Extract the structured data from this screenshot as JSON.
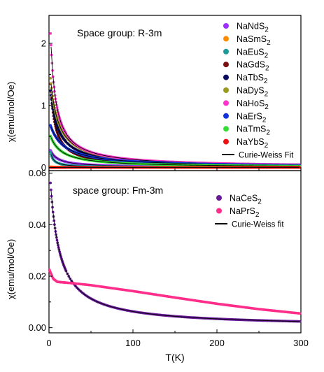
{
  "figure": {
    "ylabel": "χ(emu/mol/Oe)",
    "xlabel": "T(K)",
    "xticks": [
      "0",
      "100",
      "200",
      "300"
    ]
  },
  "chart_data": [
    {
      "type": "scatter",
      "annotation": "Space group: R-3m",
      "xlabel": "T(K)",
      "ylabel": "χ(emu/mol/Oe)",
      "xlim": [
        0,
        300
      ],
      "ylim": [
        -0.05,
        2.45
      ],
      "yticks": [
        "0",
        "1",
        "2"
      ],
      "legend_position": "top-right",
      "fit_label": "Curie-Weiss Fit",
      "series": [
        {
          "name": "NaNdS",
          "sub": "2",
          "color": "#9b30ff",
          "C": 2.5,
          "theta": 7.3,
          "chi0": 0.001
        },
        {
          "name": "NaSmS",
          "sub": "2",
          "color": "#ff8c00",
          "C": 0.03,
          "theta": 2.0,
          "chi0": 0.004
        },
        {
          "name": "NaEuS",
          "sub": "2",
          "color": "#1e9a9a",
          "C": 0.9,
          "theta": 1.8,
          "chi0": 0.0
        },
        {
          "name": "NaGdS",
          "sub": "2",
          "color": "#7a1010",
          "C": 7.8,
          "theta": 4.0,
          "chi0": 0.0
        },
        {
          "name": "NaTbS",
          "sub": "2",
          "color": "#0a0a60",
          "C": 11.5,
          "theta": 7.5,
          "chi0": 0.0
        },
        {
          "name": "NaDyS",
          "sub": "2",
          "color": "#9a9a20",
          "C": 13.8,
          "theta": 7.8,
          "chi0": 0.0
        },
        {
          "name": "NaHoS",
          "sub": "2",
          "color": "#ff33cc",
          "C": 13.6,
          "theta": 4.5,
          "chi0": 0.0
        },
        {
          "name": "NaErS",
          "sub": "2",
          "color": "#1133dd",
          "C": 11.4,
          "theta": 15.0,
          "chi0": 0.0
        },
        {
          "name": "NaTmS",
          "sub": "2",
          "color": "#33dd33",
          "C": 7.0,
          "theta": 12.0,
          "chi0": 0.0
        },
        {
          "name": "NaYbS",
          "sub": "2",
          "color": "#ee1111",
          "C": 0.005,
          "theta": 2.0,
          "chi0": 0.0
        }
      ]
    },
    {
      "type": "scatter",
      "annotation": "space group: Fm-3m",
      "xlabel": "T(K)",
      "ylabel": "χ(emu/mol/Oe)",
      "xlim": [
        0,
        300
      ],
      "ylim": [
        -0.002,
        0.061
      ],
      "yticks": [
        "0.00",
        "0.02",
        "0.04",
        "0.06"
      ],
      "legend_position": "top-right",
      "fit_label": "Curie-Weiss fit",
      "series": [
        {
          "name": "NaCeS",
          "sub": "2",
          "color": "#6a1b9a",
          "C": 0.66,
          "theta": 10.0,
          "chi0": 0.0003
        },
        {
          "name": "NaPrS",
          "sub": "2",
          "color": "#ff2d8a",
          "C": 0.0,
          "theta": 0.0,
          "chi0": 0.0,
          "points": [
            [
              0.5,
              0.0225
            ],
            [
              5,
              0.019
            ],
            [
              10,
              0.0178
            ],
            [
              30,
              0.0172
            ],
            [
              50,
              0.0165
            ],
            [
              100,
              0.0142
            ],
            [
              150,
              0.0117
            ],
            [
              200,
              0.0093
            ],
            [
              250,
              0.0072
            ],
            [
              300,
              0.0055
            ]
          ]
        }
      ]
    }
  ]
}
